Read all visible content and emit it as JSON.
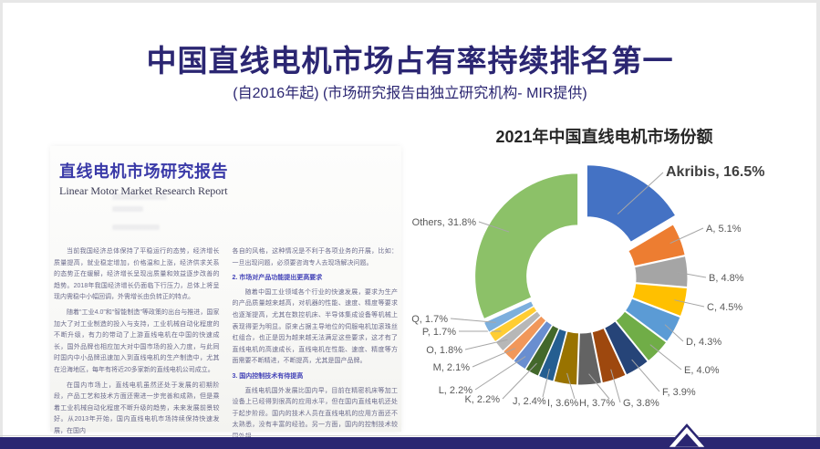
{
  "slide": {
    "title": "中国直线电机市场占有率持续排名第一",
    "subtitle": "(自2016年起) (市场研究报告由独立研究机构- MIR提供)"
  },
  "report": {
    "title": "直线电机市场研究报告",
    "subtitle": "Linear Motor Market Research Report",
    "left_column": {
      "p1": "当前我国经济总体保持了平稳运行的态势，经济增长质量提高，就业稳定增加，价格温和上涨，经济供求关系的态势正在缓解，经济增长呈现出质量和效益逐步改善的趋势。2018年我国经济增长仍面临下行压力，总体上将呈现内需稳中小幅回调，外需增长由负转正的特点。",
      "p2": "随着“工业4.0”和“智能制造”等政策的出台与推进，国家加大了对工业制造的投入与支持，工业机械自动化程度的不断升级，有力的带动了上游直线电机在中国的快速成长，国外品牌也相应加大对中国市场的投入力度，与此同时国内中小品牌迅速加入到直线电机的生产制造中，尤其在沿海地区，每年有将近20多家新的直线电机公司成立。",
      "p3": "在国内市场上，直线电机虽然还处于发展的初期阶段，产品工艺和技术方面还需进一步完善和成熟，但是乘着工业机械自动化程度不断升级的趋势，未来发展前景较好。从2013年开始，国内直线电机市场持续保持快速发展，在国内"
    },
    "right_column": {
      "p1": "各自的风格，这种情况是不利于各项业务的开展，比如：一旦出现问题，必须要咨询专人去现场解决问题。",
      "h2": "2. 市场对产品功能提出更高要求",
      "p2": "随着中国工业领域各个行业的快速发展，要求为生产的产品质量越来越高，对机器的性能、速度、精度等要求也逐渐提高，尤其在数控机床、半导体集成设备等机械上表现得更为明显。原来占据主导地位的伺服电机加滚珠丝杠组合，也正是因为越来越无法满足这些要求，这才有了直线电机的高速成长，直线电机在性能、速度、精度等方面需要不断精进，不断提高，尤其是国产品牌。",
      "h3": "3. 国内控制技术有待提高",
      "p3": "直线电机国外发展比国内早，目前在精密机床等加工设备上已经得到很高的应用水平，但在国内直线电机还处于起步阶段。国内的技术人员在直线电机的应用方面还不太熟悉，没有丰富的经验。另一方面，国内的控制技术较国外相"
    }
  },
  "chart_data": {
    "type": "pie",
    "subtype": "exploded-doughnut",
    "title": "2021年中国直线电机市场份额",
    "unit": "percent-market-share",
    "start_angle_deg": 0,
    "direction": "clockwise",
    "slices": [
      {
        "name": "Akribis",
        "value": 16.5,
        "label": "Akribis, 16.5%",
        "color": "#4472C4",
        "exploded": true
      },
      {
        "name": "A",
        "value": 5.1,
        "label": "A, 5.1%",
        "color": "#ED7D31"
      },
      {
        "name": "B",
        "value": 4.8,
        "label": "B, 4.8%",
        "color": "#A5A5A5"
      },
      {
        "name": "C",
        "value": 4.5,
        "label": "C, 4.5%",
        "color": "#FFC000"
      },
      {
        "name": "D",
        "value": 4.3,
        "label": "D, 4.3%",
        "color": "#5B9BD5"
      },
      {
        "name": "E",
        "value": 4.0,
        "label": "E, 4.0%",
        "color": "#70AD47"
      },
      {
        "name": "F",
        "value": 3.9,
        "label": "F, 3.9%",
        "color": "#264478"
      },
      {
        "name": "G",
        "value": 3.8,
        "label": "G, 3.8%",
        "color": "#9E480E"
      },
      {
        "name": "H",
        "value": 3.7,
        "label": "H, 3.7%",
        "color": "#636363"
      },
      {
        "name": "I",
        "value": 3.6,
        "label": "I, 3.6%",
        "color": "#997300"
      },
      {
        "name": "J",
        "value": 2.4,
        "label": "J, 2.4%",
        "color": "#255E91"
      },
      {
        "name": "K",
        "value": 2.2,
        "label": "K, 2.2%",
        "color": "#43682B"
      },
      {
        "name": "L",
        "value": 2.2,
        "label": "L, 2.2%",
        "color": "#698ED0"
      },
      {
        "name": "M",
        "value": 2.1,
        "label": "M, 2.1%",
        "color": "#F1975A"
      },
      {
        "name": "O",
        "value": 1.8,
        "label": "O, 1.8%",
        "color": "#B7B7B7"
      },
      {
        "name": "P",
        "value": 1.7,
        "label": "P, 1.7%",
        "color": "#FFCD33"
      },
      {
        "name": "Q",
        "value": 1.7,
        "label": "Q, 1.7%",
        "color": "#7CAFDD"
      },
      {
        "name": "Others",
        "value": 31.8,
        "label": "Others, 31.8%",
        "color": "#8CC168"
      }
    ]
  },
  "colors": {
    "accent_navy": "#2B2672",
    "chart_label": "#595959",
    "chart_label_emphasis": "#3F3F3F",
    "leader_line": "#A6A6A6",
    "doc_heading_blue": "#3333B2",
    "doc_title_indigo": "#3A3AA8",
    "frame_gray": "#E7E7E7"
  },
  "footer": {
    "logo": "akribis-triangle-logo"
  }
}
